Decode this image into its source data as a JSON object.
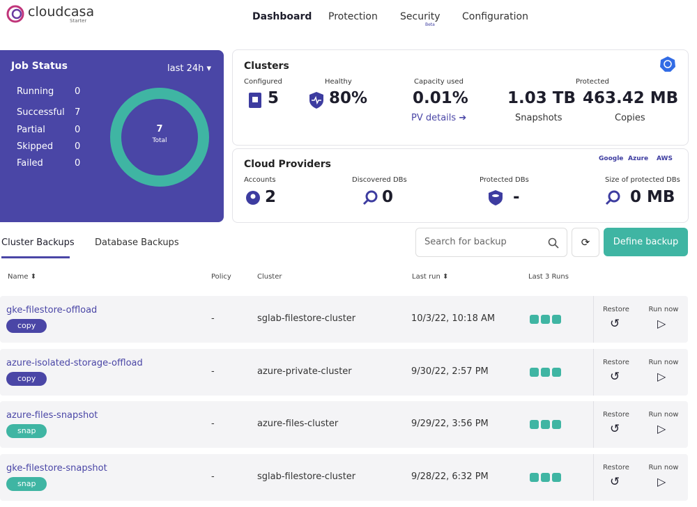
{
  "header": {
    "logo": "cloudcasa",
    "logo_sub": "Starter",
    "nav": [
      "Dashboard",
      "Protection",
      "Security",
      "Configuration"
    ],
    "nav_badge": "Beta"
  },
  "job_status": {
    "title": "Job Status",
    "range": "last 24h",
    "items": [
      {
        "label": "Running",
        "value": 0
      },
      {
        "label": "Successful",
        "value": 7
      },
      {
        "label": "Partial",
        "value": 0
      },
      {
        "label": "Skipped",
        "value": 0
      },
      {
        "label": "Failed",
        "value": 0
      }
    ],
    "total": 7,
    "total_label": "Total",
    "ring_color": "#3fb5a3"
  },
  "clusters": {
    "title": "Clusters",
    "configured_label": "Configured",
    "configured": "5",
    "healthy_label": "Healthy",
    "healthy": "80%",
    "capacity_label": "Capacity used",
    "capacity": "0.01%",
    "pv_link": "PV details",
    "protected_label": "Protected",
    "snapshots": "1.03 TB",
    "snapshots_label": "Snapshots",
    "copies": "463.42 MB",
    "copies_label": "Copies"
  },
  "cloud_providers": {
    "title": "Cloud Providers",
    "providers": [
      "Google",
      "Azure",
      "AWS"
    ],
    "accounts_label": "Accounts",
    "accounts": "2",
    "discovered_label": "Discovered DBs",
    "discovered": "0",
    "protected_label": "Protected DBs",
    "protected": "-",
    "size_label": "Size of protected DBs",
    "size": "0 MB"
  },
  "tabs": [
    "Cluster Backups",
    "Database Backups"
  ],
  "search_placeholder": "Search for backup",
  "define_button": "Define backup",
  "table": {
    "columns": [
      "Name",
      "Policy",
      "Cluster",
      "Last run",
      "Last 3 Runs"
    ],
    "actions": [
      "Restore",
      "Run now"
    ],
    "rows": [
      {
        "name": "gke-filestore-offload",
        "tag": "copy",
        "policy": "-",
        "cluster": "sglab-filestore-cluster",
        "last_run": "10/3/22, 10:18 AM"
      },
      {
        "name": "azure-isolated-storage-offload",
        "tag": "copy",
        "policy": "-",
        "cluster": "azure-private-cluster",
        "last_run": "9/30/22, 2:57 PM"
      },
      {
        "name": "azure-files-snapshot",
        "tag": "snap",
        "policy": "-",
        "cluster": "azure-files-cluster",
        "last_run": "9/29/22, 3:56 PM"
      },
      {
        "name": "gke-filestore-snapshot",
        "tag": "snap",
        "policy": "-",
        "cluster": "sglab-filestore-cluster",
        "last_run": "9/28/22, 6:32 PM"
      }
    ]
  }
}
